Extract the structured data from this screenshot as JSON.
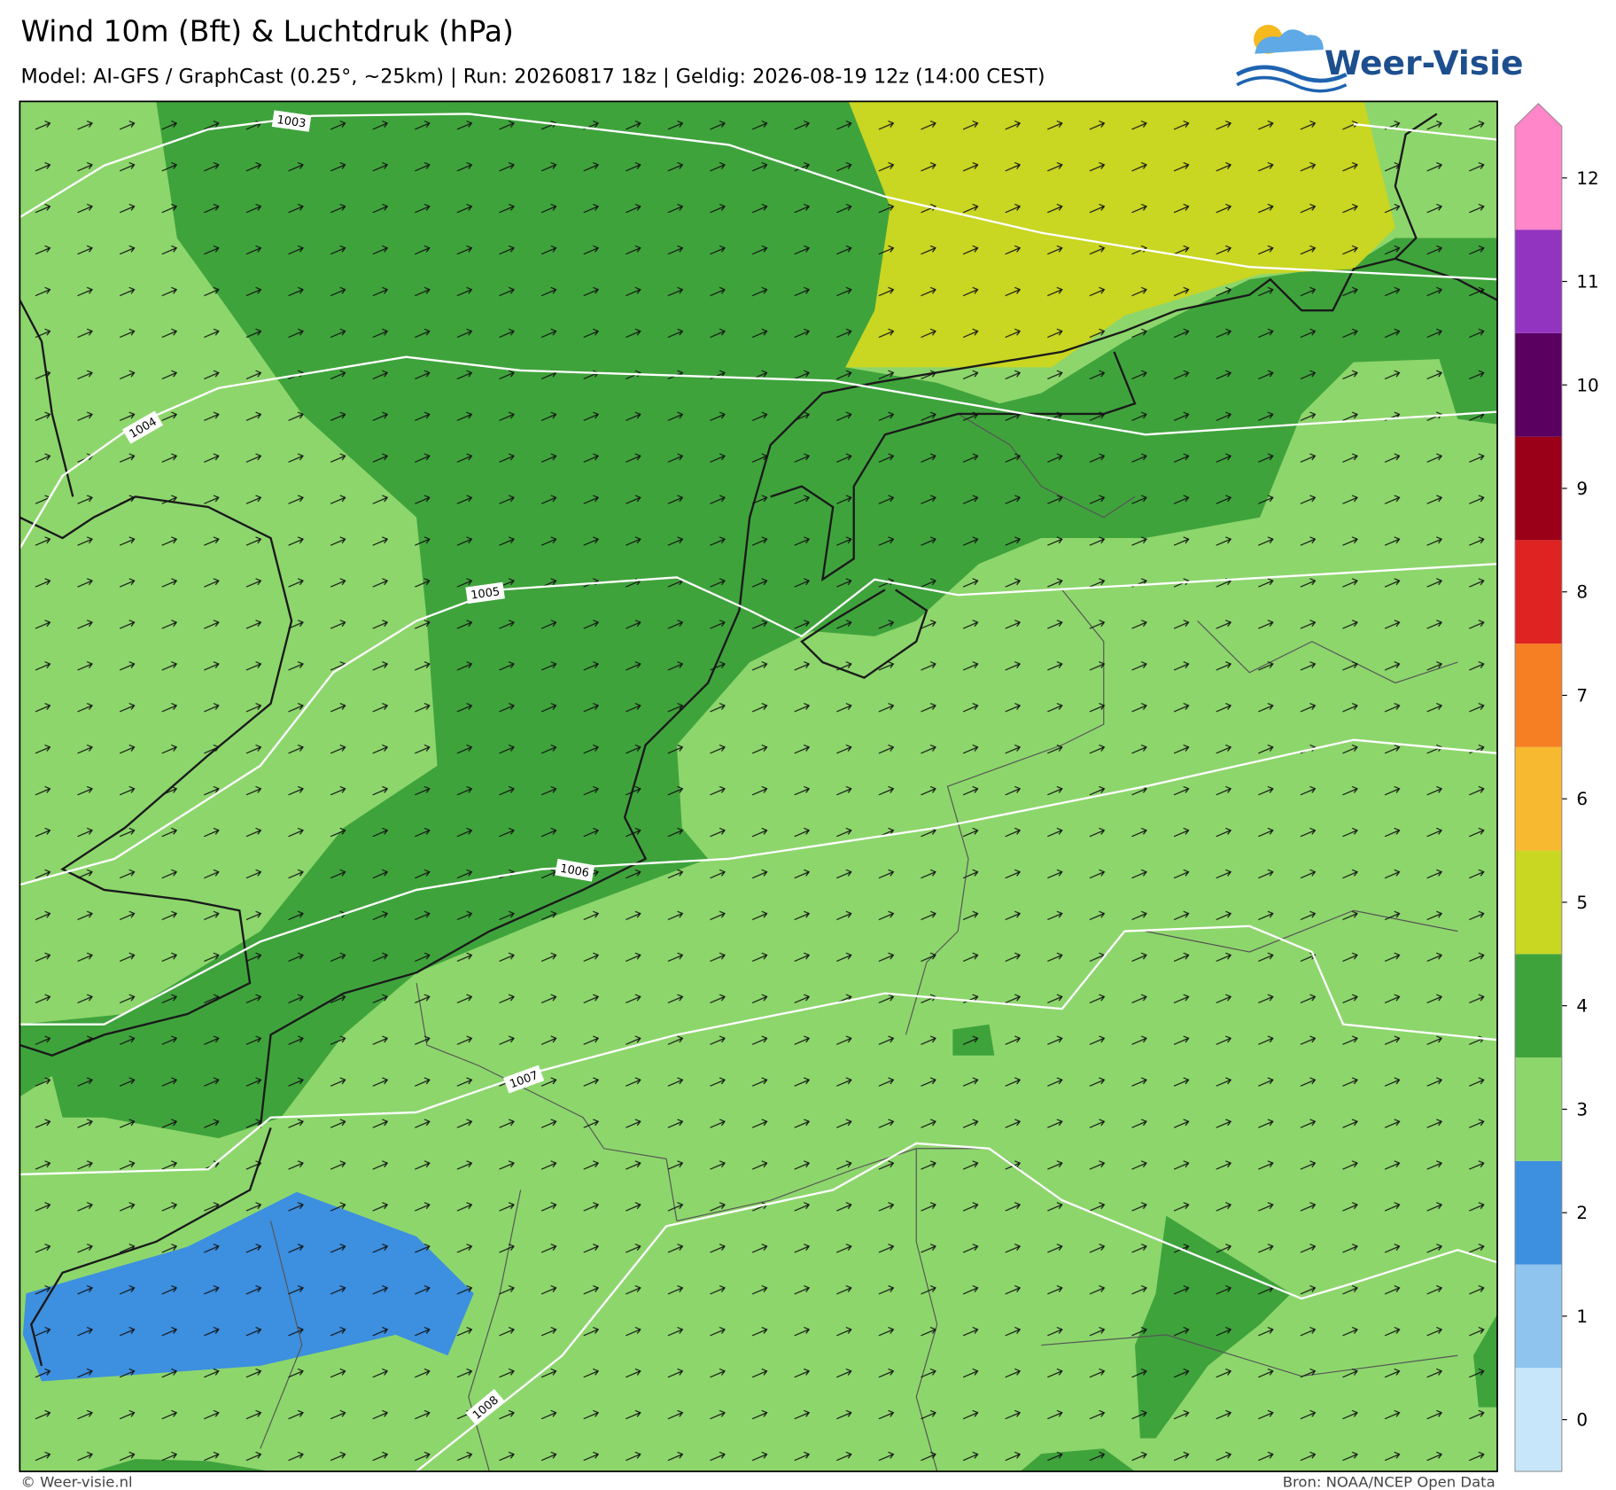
{
  "header": {
    "title": "Wind 10m (Bft) & Luchtdruk (hPa)",
    "subtitle": "Model: AI-GFS / GraphCast (0.25°, ~25km)  |  Run: 20260817 18z  |  Geldig: 2026-08-19 12z (14:00 CEST)",
    "logo": "Weer-Visie"
  },
  "isobars": [
    {
      "label": "1003"
    },
    {
      "label": "1004"
    },
    {
      "label": "1005"
    },
    {
      "label": "1006"
    },
    {
      "label": "1007"
    },
    {
      "label": "1008"
    }
  ],
  "legend": {
    "levels": [
      0,
      1,
      2,
      3,
      4,
      5,
      6,
      7,
      8,
      9,
      10,
      11,
      12
    ],
    "colors": [
      "#c8e6fa",
      "#8ec4ee",
      "#3d8fdf",
      "#8dd66c",
      "#3fa33c",
      "#c9d622",
      "#f7b92f",
      "#f57f22",
      "#df2222",
      "#9a0018",
      "#5a0060",
      "#9234bf",
      "#ff86c8"
    ]
  },
  "footer": {
    "left": "© Weer-visie.nl",
    "right": "Bron: NOAA/NCEP Open Data"
  }
}
